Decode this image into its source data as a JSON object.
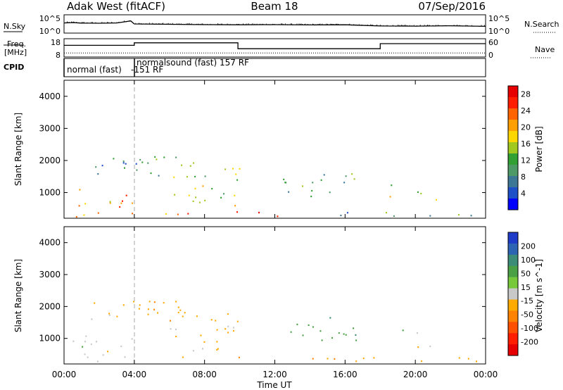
{
  "header": {
    "title": "Adak West (fitACF)",
    "beam": "Beam 18",
    "date": "07/Sep/2016"
  },
  "top_panels": {
    "nsky_label": "N.Sky",
    "nsky_ticks": [
      "10^5",
      "10^0"
    ],
    "nsearch_label": "N.Search",
    "nsearch_ticks": [
      "10^5",
      "10^0"
    ],
    "freq_label": "Freq.",
    "freq_unit": "[MHz]",
    "freq_ticks": [
      "18",
      "8"
    ],
    "nave_label": "Nave",
    "nave_ticks": [
      "60",
      "0"
    ],
    "cpid_label": "CPID",
    "cpid_segments": [
      {
        "text": "normal (fast)",
        "start_h": 0,
        "end_h": 3.75
      },
      {
        "text": "-151 RF",
        "start_h": 3.75,
        "end_h": 4
      },
      {
        "text": "normalsound (fast)  157 RF",
        "start_h": 4,
        "end_h": 24
      }
    ]
  },
  "colors": {
    "power_scale": [
      "#0000ff",
      "#1e50c8",
      "#3c7896",
      "#4e9a66",
      "#32a032",
      "#a0c81e",
      "#ffd700",
      "#ffa000",
      "#ff6400",
      "#ff1e00",
      "#e60000"
    ],
    "velocity_scale": [
      "#1e3cc8",
      "#2d64b4",
      "#3c8c78",
      "#4ba046",
      "#78c83c",
      "#c8c8c8",
      "#ffaa00",
      "#ff8200",
      "#ff5000",
      "#ff1e00",
      "#e60000"
    ]
  },
  "chart_data": [
    {
      "type": "line",
      "title": "N.Sky / N.Search",
      "x": [
        0,
        0.5,
        1,
        2,
        3,
        3.8,
        4,
        6,
        8,
        10,
        12,
        14,
        16,
        18,
        20,
        22,
        24
      ],
      "series": [
        {
          "name": "N.Sky",
          "values": [
            5.6,
            5.8,
            5.5,
            5.4,
            5.6,
            6.8,
            5.0,
            4.8,
            4.6,
            4.5,
            4.6,
            4.4,
            4.5,
            3.8,
            3.7,
            3.9,
            3.6
          ]
        }
      ],
      "ylim": [
        0,
        10
      ]
    },
    {
      "type": "line",
      "title": "Freq. / Nave",
      "x": [
        0,
        4,
        4,
        9.9,
        9.9,
        18,
        18,
        24
      ],
      "series": [
        {
          "name": "Freq.",
          "values": [
            14.5,
            14.5,
            16.0,
            16.0,
            12.5,
            12.5,
            15.5,
            15.5
          ]
        },
        {
          "name": "Nave",
          "values": [
            12,
            12,
            12,
            12,
            12,
            12,
            12,
            12
          ]
        }
      ],
      "xlim": [
        0,
        24
      ]
    },
    {
      "type": "heatmap",
      "title": "Power",
      "xlabel": "Time UT",
      "ylabel": "Slant Range [km]",
      "colorbar_label": "Power [dB]",
      "colorbar_ticks": [
        4,
        8,
        12,
        16,
        20,
        24,
        28
      ],
      "colorbar_range": [
        0,
        30
      ],
      "xlim": [
        0,
        24
      ],
      "ylim": [
        200,
        4500
      ],
      "xticks": [
        "00:00",
        "04:00",
        "08:00",
        "12:00",
        "16:00",
        "20:00",
        "00:00"
      ],
      "yticks": [
        1000,
        2000,
        3000,
        4000
      ],
      "regions": [
        {
          "t0": 0.0,
          "t1": 4.0,
          "r0": 260,
          "r1": 1150,
          "level": 22
        },
        {
          "t0": 1.5,
          "t1": 4.0,
          "r0": 1600,
          "r1": 2200,
          "level": 8
        },
        {
          "t0": 4.0,
          "t1": 8.0,
          "r0": 1500,
          "r1": 2200,
          "level": 10
        },
        {
          "t0": 6.0,
          "t1": 10.0,
          "r0": 600,
          "r1": 1900,
          "level": 14
        },
        {
          "t0": 12.0,
          "t1": 14.0,
          "r0": 900,
          "r1": 1500,
          "level": 10
        },
        {
          "t0": 14.0,
          "t1": 16.8,
          "r0": 900,
          "r1": 1700,
          "level": 11
        },
        {
          "t0": 18.5,
          "t1": 21.5,
          "r0": 700,
          "r1": 1300,
          "level": 18
        },
        {
          "t0": 5.5,
          "t1": 14.0,
          "r0": 250,
          "r1": 450,
          "level": 24
        },
        {
          "t0": 14.0,
          "t1": 24.0,
          "r0": 250,
          "r1": 450,
          "level": 10
        }
      ]
    },
    {
      "type": "heatmap",
      "title": "Velocity",
      "xlabel": "Time UT",
      "ylabel": "Slant Range [km]",
      "colorbar_label": "Velocity [m s^-1]",
      "colorbar_ticks": [
        200,
        100,
        50,
        15,
        -15,
        -50,
        -100,
        -200
      ],
      "xlim": [
        0,
        24
      ],
      "ylim": [
        200,
        4500
      ],
      "xticks": [
        "00:00",
        "04:00",
        "08:00",
        "12:00",
        "16:00",
        "20:00",
        "00:00"
      ],
      "yticks": [
        1000,
        2000,
        3000,
        4000
      ],
      "regions": [
        {
          "t0": 0.0,
          "t1": 4.0,
          "r0": 260,
          "r1": 1150,
          "level": 0
        },
        {
          "t0": 1.5,
          "t1": 4.0,
          "r0": 1600,
          "r1": 2200,
          "level": -30
        },
        {
          "t0": 4.0,
          "t1": 8.0,
          "r0": 1500,
          "r1": 2200,
          "level": -40
        },
        {
          "t0": 6.0,
          "t1": 10.0,
          "r0": 600,
          "r1": 1900,
          "level": -20
        },
        {
          "t0": 12.0,
          "t1": 14.0,
          "r0": 900,
          "r1": 1500,
          "level": 30
        },
        {
          "t0": 14.0,
          "t1": 16.8,
          "r0": 900,
          "r1": 1700,
          "level": 40
        },
        {
          "t0": 18.5,
          "t1": 21.5,
          "r0": 700,
          "r1": 1300,
          "level": 0
        },
        {
          "t0": 5.5,
          "t1": 24.0,
          "r0": 250,
          "r1": 450,
          "level": -40
        }
      ]
    }
  ]
}
